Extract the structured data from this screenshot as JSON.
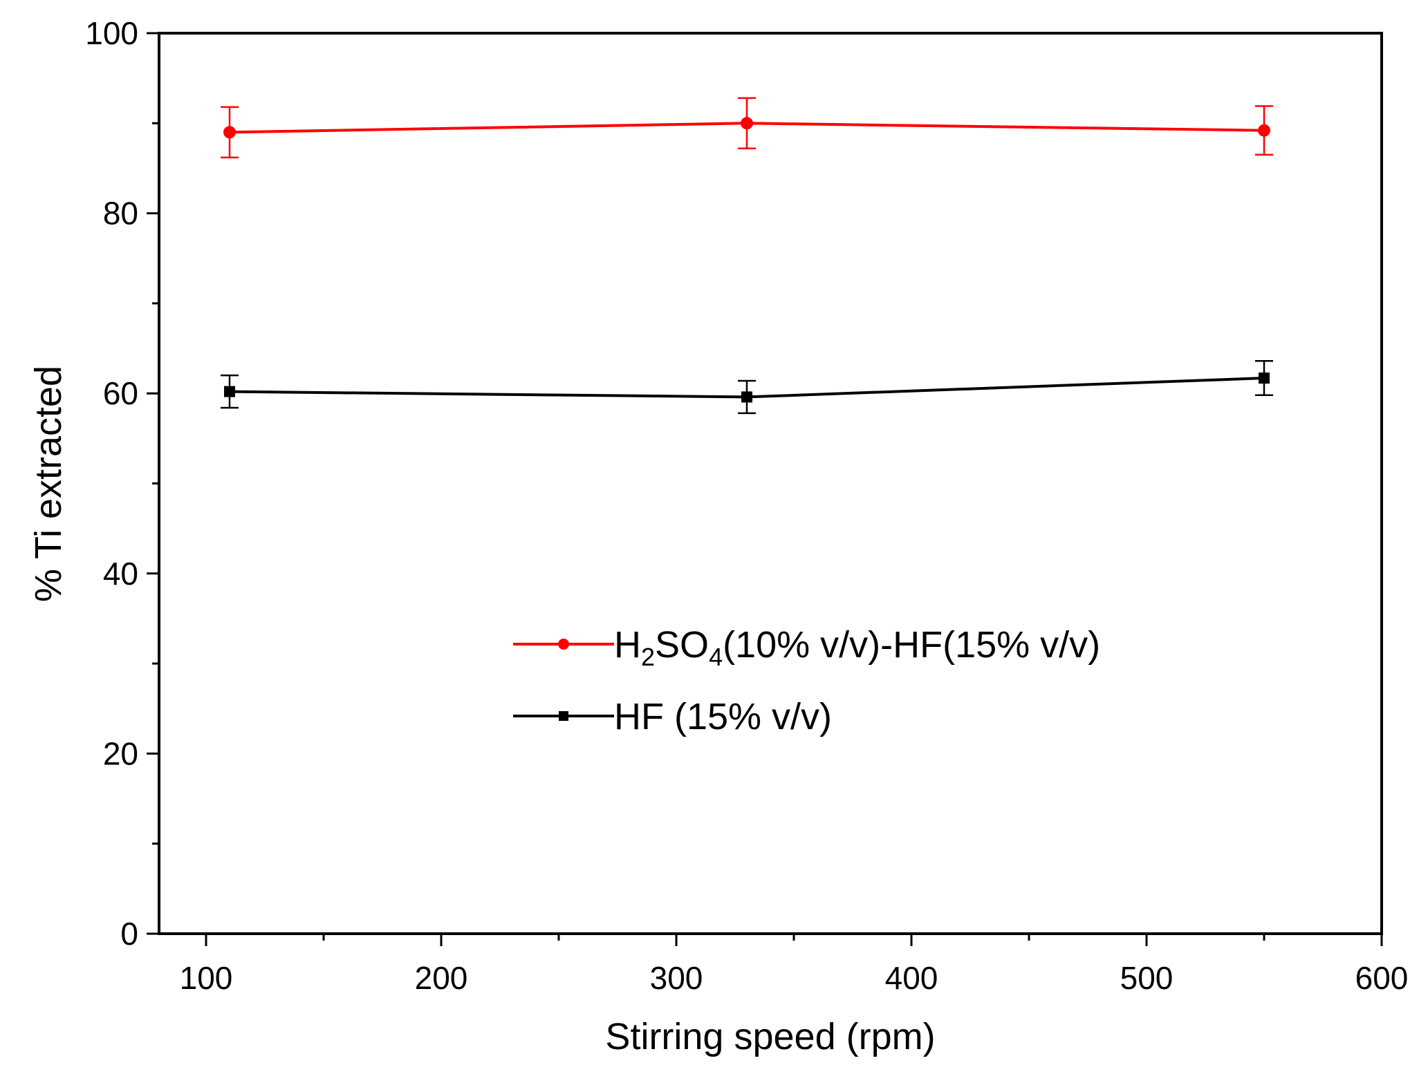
{
  "chart_data": {
    "type": "line",
    "title": "",
    "xlabel": "Stirring speed (rpm)",
    "ylabel": "% Ti extracted",
    "xlim": [
      80,
      600
    ],
    "ylim": [
      0,
      100
    ],
    "xticks": [
      100,
      200,
      300,
      400,
      500,
      600
    ],
    "xminor": [
      150,
      250,
      350,
      450,
      550
    ],
    "yticks": [
      0,
      20,
      40,
      60,
      80,
      100
    ],
    "yminor": [
      10,
      30,
      50,
      70,
      90
    ],
    "x": [
      110,
      330,
      550
    ],
    "legend_position": "center",
    "series": [
      {
        "name": "H2SO4(10% v/v)-HF(15% v/v)",
        "legend_parts": [
          "H",
          "2",
          "SO",
          "4",
          "(10% v/v)-HF(15% v/v)"
        ],
        "color": "#ff0000",
        "marker": "circle",
        "values": [
          89.0,
          90.0,
          89.2
        ],
        "errors": [
          2.8,
          2.8,
          2.7
        ]
      },
      {
        "name": "HF (15% v/v)",
        "legend_parts": [
          "HF (15% v/v)"
        ],
        "color": "#000000",
        "marker": "square",
        "values": [
          60.2,
          59.6,
          61.7
        ],
        "errors": [
          1.8,
          1.8,
          1.9
        ]
      }
    ]
  }
}
